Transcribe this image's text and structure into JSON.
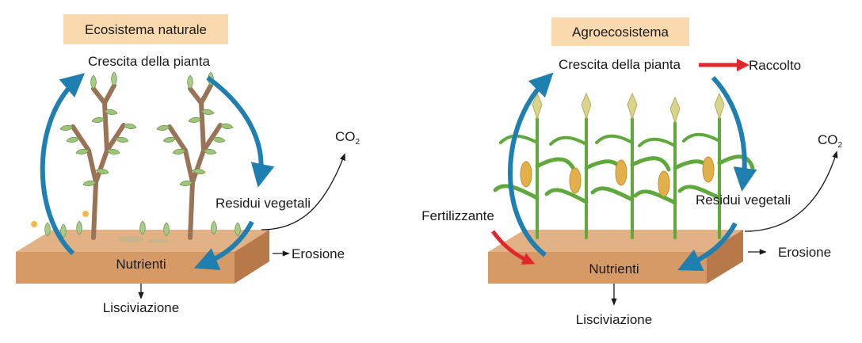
{
  "natural": {
    "title": "Ecosistema naturale",
    "growth": "Crescita della pianta",
    "residues": "Residui vegetali",
    "nutrients": "Nutrienti",
    "erosion": "Erosione",
    "leaching": "Lisciviazione",
    "co2": {
      "base": "CO",
      "sub": "2"
    }
  },
  "agro": {
    "title": "Agroecosistema",
    "growth": "Crescita della pianta",
    "harvest": "Raccolto",
    "fertilizer": "Fertilizzante",
    "residues": "Residui vegetali",
    "nutrients": "Nutrienti",
    "erosion": "Erosione",
    "leaching": "Lisciviazione",
    "co2": {
      "base": "CO",
      "sub": "2"
    }
  },
  "colors": {
    "title_bg": "#fbd9ae",
    "soil_top": "#e2b185",
    "soil_front": "#d59a66",
    "soil_side": "#b7784a",
    "cycle_arrow": "#1f7fb0",
    "input_arrow": "#e3262b",
    "leaf": "#9cc47a",
    "stem": "#9a7356",
    "corn_leaf": "#5fa83b"
  }
}
